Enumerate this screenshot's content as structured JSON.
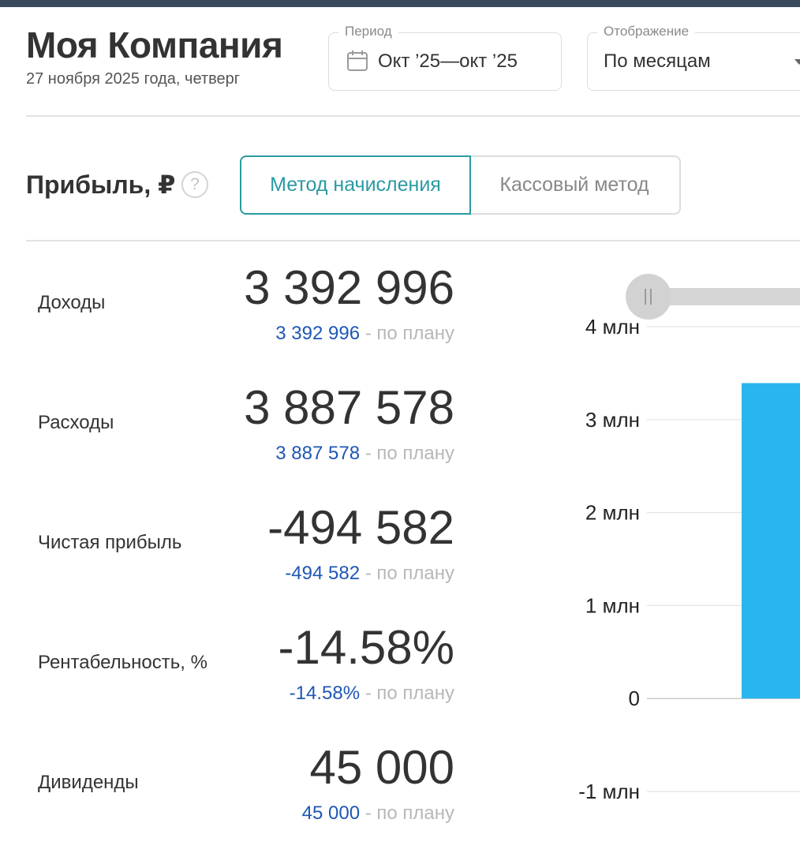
{
  "header": {
    "company": "Моя Компания",
    "date": "27 ноября 2025 года, четверг"
  },
  "period": {
    "label": "Период",
    "value": "Окт ’25—окт ’25",
    "icon": "calendar-icon"
  },
  "display": {
    "label": "Отображение",
    "value": "По месяцам",
    "icon": "chevron-down-icon"
  },
  "profit": {
    "title": "Прибыль, ₽",
    "help_icon": "?",
    "tabs": [
      {
        "label": "Метод начисления",
        "active": true
      },
      {
        "label": "Кассовый метод",
        "active": false
      }
    ]
  },
  "metrics": [
    {
      "label": "Доходы",
      "value": "3 392 996",
      "plan": "3 392 996",
      "plan_suffix": " - по плану"
    },
    {
      "label": "Расходы",
      "value": "3 887 578",
      "plan": "3 887 578",
      "plan_suffix": " - по плану"
    },
    {
      "label": "Чистая прибыль",
      "value": "-494 582",
      "plan": "-494 582",
      "plan_suffix": " - по плану"
    },
    {
      "label": "Рентабельность, %",
      "value": "-14.58%",
      "plan": "-14.58%",
      "plan_suffix": " - по плану"
    },
    {
      "label": "Дивиденды",
      "value": "45 000",
      "plan": "45 000",
      "plan_suffix": " - по плану"
    }
  ],
  "colors": {
    "accent": "#2a9aa3",
    "plan": "#1e57b5",
    "bar": "#29b6ee",
    "topbar": "#3a4a5c"
  },
  "chart_data": {
    "type": "bar",
    "y_ticks": [
      "4 млн",
      "3 млн",
      "2 млн",
      "1 млн",
      "0",
      "-1 млн"
    ],
    "ylim": [
      -1000000,
      4000000
    ],
    "series": [
      {
        "values": [
          3392996
        ]
      }
    ],
    "slider": {
      "position": 0
    }
  }
}
